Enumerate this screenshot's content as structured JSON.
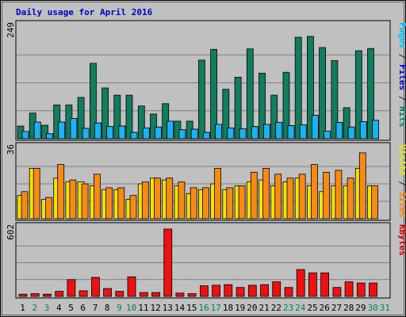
{
  "chart_data": {
    "type": "bar",
    "title": "Daily usage for April 2016",
    "categories": [
      "1",
      "2",
      "3",
      "4",
      "5",
      "6",
      "7",
      "8",
      "9",
      "10",
      "11",
      "12",
      "13",
      "14",
      "15",
      "16",
      "17",
      "18",
      "19",
      "20",
      "21",
      "22",
      "23",
      "24",
      "25",
      "26",
      "27",
      "28",
      "29",
      "30",
      "31"
    ],
    "weekend_days": [
      "2",
      "3",
      "9",
      "10",
      "16",
      "17",
      "23",
      "24",
      "30",
      "31"
    ],
    "panels": [
      {
        "id": "hits_files_pages",
        "y_max_label": "249",
        "ylim": [
          0,
          249
        ],
        "right_label_parts": [
          {
            "text": "Pages",
            "color": "#00c0ff"
          },
          {
            "text": " / ",
            "color": "#222222"
          },
          {
            "text": "Files",
            "color": "#0000c8"
          },
          {
            "text": " / ",
            "color": "#222222"
          },
          {
            "text": "Hits",
            "color": "#008060"
          }
        ],
        "series": [
          {
            "name": "Hits",
            "color": "#117d5e",
            "values": [
              28,
              57,
              30,
              75,
              75,
              92,
              168,
              113,
              97,
              97,
              73,
              55,
              78,
              39,
              39,
              175,
              199,
              110,
              137,
              200,
              146,
              97,
              148,
              226,
              228,
              203,
              174,
              69,
              196,
              201,
              0
            ]
          },
          {
            "name": "Files",
            "color": "#1515c8",
            "values": [
              16,
              37,
              11,
              37,
              45,
              23,
              35,
              27,
              28,
              14,
              24,
              26,
              39,
              20,
              21,
              14,
              32,
              24,
              22,
              27,
              32,
              36,
              29,
              31,
              52,
              17,
              36,
              26,
              38,
              41,
              0
            ]
          },
          {
            "name": "Pages",
            "color": "#1ab2f0",
            "values": [
              16,
              37,
              11,
              37,
              45,
              23,
              35,
              27,
              28,
              14,
              24,
              26,
              39,
              20,
              21,
              14,
              32,
              24,
              22,
              27,
              32,
              36,
              29,
              31,
              52,
              17,
              36,
              26,
              38,
              41,
              0
            ]
          }
        ]
      },
      {
        "id": "visits_sites",
        "y_max_label": "36",
        "ylim": [
          0,
          36
        ],
        "right_label_parts": [
          {
            "text": "Visits",
            "color": "#e8e800"
          },
          {
            "text": " / ",
            "color": "#222222"
          },
          {
            "text": "Sites",
            "color": "#ff8000"
          }
        ],
        "series": [
          {
            "name": "Visits",
            "color": "#f5e200",
            "values": [
              12,
              26,
              10,
              21,
              19,
              19,
              17,
              15,
              15,
              10,
              18,
              21,
              20,
              17,
              13,
              15,
              18,
              15,
              17,
              19,
              20,
              17,
              19,
              21,
              17,
              14,
              17,
              17,
              26,
              17,
              0
            ]
          },
          {
            "name": "Sites",
            "color": "#f58a14",
            "values": [
              14,
              26,
              11,
              28,
              20,
              18,
              23,
              16,
              16,
              12,
              19,
              21,
              21,
              19,
              16,
              16,
              26,
              16,
              17,
              24,
              26,
              23,
              21,
              23,
              28,
              24,
              25,
              21,
              34,
              17,
              0
            ]
          }
        ]
      },
      {
        "id": "kbytes",
        "y_max_label": "602",
        "ylim": [
          0,
          602
        ],
        "right_label_parts": [
          {
            "text": "KBytes",
            "color": "#d00000"
          }
        ],
        "series": [
          {
            "name": "KBytes",
            "color": "#ee1111",
            "values": [
              20,
              25,
              20,
              45,
              150,
              50,
              170,
              70,
              45,
              175,
              35,
              35,
              602,
              30,
              25,
              95,
              100,
              105,
              80,
              100,
              105,
              130,
              80,
              240,
              210,
              210,
              80,
              130,
              120,
              120,
              0
            ]
          }
        ]
      }
    ],
    "xlabel": "",
    "ylabel": "",
    "grid": true,
    "legend": "right-side vertical labels"
  },
  "colors": {
    "background": "#c0c0c0",
    "title": "#0000c8",
    "plot_area": "#c0c0c0",
    "weekday_label": "#000000",
    "weekend_label": "#008060",
    "gridline": "#7f7f7f"
  }
}
